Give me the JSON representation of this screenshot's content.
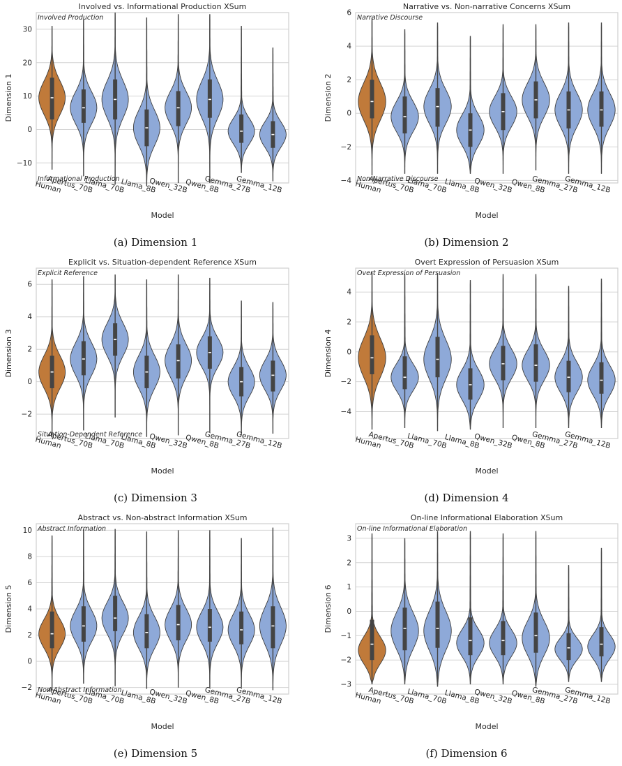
{
  "chart_data": [
    {
      "type": "violin",
      "title": "Involved vs. Informational Production XSum",
      "xlabel": "Model",
      "ylabel": "Dimension 1",
      "ylim": [
        -16,
        35
      ],
      "yticks": [
        -10,
        0,
        10,
        20,
        30
      ],
      "categories": [
        "Human",
        "Apertus_70B",
        "Llama_70B",
        "Llama_8B",
        "Qwen_32B",
        "Qwen_8B",
        "Gemma_27B",
        "Gemma_12B"
      ],
      "annotation_top": "Involved Production",
      "annotation_bottom": "Informational Production",
      "caption": "(a) Dimension 1",
      "stats": [
        {
          "min": -12,
          "q1": 3,
          "median": 9.5,
          "q3": 15.5,
          "max": 31,
          "mode": 9.5,
          "spread": 5
        },
        {
          "min": -14,
          "q1": 2,
          "median": 6.5,
          "q3": 12,
          "max": 33,
          "mode": 6.5,
          "spread": 4.8
        },
        {
          "min": -16.5,
          "q1": 3,
          "median": 9,
          "q3": 15,
          "max": 35,
          "mode": 9,
          "spread": 5.5
        },
        {
          "min": -17,
          "q1": -5,
          "median": 0.5,
          "q3": 6,
          "max": 33.5,
          "mode": 0.5,
          "spread": 5.2
        },
        {
          "min": -16,
          "q1": 1,
          "median": 6.5,
          "q3": 11.5,
          "max": 34.5,
          "mode": 6.5,
          "spread": 4.8
        },
        {
          "min": -16,
          "q1": 3.5,
          "median": 9,
          "q3": 15,
          "max": 34.5,
          "mode": 9,
          "spread": 5.5
        },
        {
          "min": -13,
          "q1": -4,
          "median": -0.5,
          "q3": 4.5,
          "max": 31,
          "mode": -0.5,
          "spread": 3.8
        },
        {
          "min": -15.5,
          "q1": -5.5,
          "median": -1.5,
          "q3": 2.5,
          "max": 24.5,
          "mode": -1.5,
          "spread": 3.8
        }
      ]
    },
    {
      "type": "violin",
      "title": "Narrative vs. Non-narrative Concerns XSum",
      "xlabel": "Model",
      "ylabel": "Dimension 2",
      "ylim": [
        -4.15,
        6
      ],
      "yticks": [
        -4,
        -2,
        0,
        2,
        4,
        6
      ],
      "categories": [
        "Human",
        "Apertus_70B",
        "Llama_70B",
        "Llama_8B",
        "Qwen_32B",
        "Qwen_8B",
        "Gemma_27B",
        "Gemma_12B"
      ],
      "annotation_top": "Narrative Discourse",
      "annotation_bottom": "Non-Narrative Discourse",
      "caption": "(b) Dimension 2",
      "stats": [
        {
          "min": -3.7,
          "q1": -0.3,
          "median": 0.7,
          "q3": 2.0,
          "max": 5.7,
          "mode": 0.7,
          "spread": 1.1
        },
        {
          "min": -3.6,
          "q1": -1.2,
          "median": -0.2,
          "q3": 1.0,
          "max": 5.0,
          "mode": -0.2,
          "spread": 0.9
        },
        {
          "min": -3.6,
          "q1": -0.8,
          "median": 0.4,
          "q3": 1.5,
          "max": 5.4,
          "mode": 0.4,
          "spread": 1.0
        },
        {
          "min": -3.6,
          "q1": -2.0,
          "median": -1.0,
          "q3": 0.0,
          "max": 4.6,
          "mode": -1.0,
          "spread": 0.9
        },
        {
          "min": -3.6,
          "q1": -1.0,
          "median": 0.1,
          "q3": 1.2,
          "max": 5.3,
          "mode": 0.1,
          "spread": 0.9
        },
        {
          "min": -3.4,
          "q1": -0.3,
          "median": 0.8,
          "q3": 1.9,
          "max": 5.3,
          "mode": 0.8,
          "spread": 1.0
        },
        {
          "min": -3.6,
          "q1": -0.9,
          "median": 0.2,
          "q3": 1.3,
          "max": 5.4,
          "mode": 0.2,
          "spread": 1.0
        },
        {
          "min": -3.6,
          "q1": -0.8,
          "median": 0.2,
          "q3": 1.3,
          "max": 5.4,
          "mode": 0.2,
          "spread": 1.0
        }
      ]
    },
    {
      "type": "violin",
      "title": "Explicit vs. Situation-dependent Reference XSum",
      "xlabel": "Model",
      "ylabel": "Dimension 3",
      "ylim": [
        -3.5,
        7
      ],
      "yticks": [
        -2,
        0,
        2,
        4,
        6
      ],
      "categories": [
        "Human",
        "Apertus_70B",
        "Llama_70B",
        "Llama_8B",
        "Qwen_32B",
        "Qwen_8B",
        "Gemma_27B",
        "Gemma_12B"
      ],
      "annotation_top": "Explicit Reference",
      "annotation_bottom": "Situation-Dependent Reference",
      "caption": "(c) Dimension 3",
      "stats": [
        {
          "min": -3.3,
          "q1": -0.4,
          "median": 0.6,
          "q3": 1.6,
          "max": 6.3,
          "mode": 0.6,
          "spread": 1.0
        },
        {
          "min": -3.0,
          "q1": 0.4,
          "median": 1.4,
          "q3": 2.5,
          "max": 6.5,
          "mode": 1.4,
          "spread": 1.0
        },
        {
          "min": -2.2,
          "q1": 1.6,
          "median": 2.6,
          "q3": 3.6,
          "max": 6.6,
          "mode": 2.6,
          "spread": 1.0
        },
        {
          "min": -3.4,
          "q1": -0.4,
          "median": 0.6,
          "q3": 1.6,
          "max": 6.3,
          "mode": 0.6,
          "spread": 1.0
        },
        {
          "min": -3.3,
          "q1": 0.2,
          "median": 1.3,
          "q3": 2.3,
          "max": 6.6,
          "mode": 1.3,
          "spread": 1.0
        },
        {
          "min": -3.1,
          "q1": 0.8,
          "median": 1.8,
          "q3": 2.8,
          "max": 6.4,
          "mode": 1.8,
          "spread": 0.9
        },
        {
          "min": -3.3,
          "q1": -0.9,
          "median": 0.0,
          "q3": 0.9,
          "max": 5.0,
          "mode": 0.0,
          "spread": 0.9
        },
        {
          "min": -3.2,
          "q1": -0.6,
          "median": 0.4,
          "q3": 1.3,
          "max": 4.9,
          "mode": 0.4,
          "spread": 0.9
        }
      ]
    },
    {
      "type": "violin",
      "title": "Overt Expression of Persuasion XSum",
      "xlabel": "Model",
      "ylabel": "Dimension 4",
      "ylim": [
        -5.8,
        5.6
      ],
      "yticks": [
        -4,
        -2,
        0,
        2,
        4
      ],
      "categories": [
        "Human",
        "Apertus_70B",
        "Llama_70B",
        "Llama_8B",
        "Qwen_32B",
        "Qwen_8B",
        "Gemma_27B",
        "Gemma_12B"
      ],
      "annotation_top": "Overt Expression of Persuasion",
      "annotation_bottom": "",
      "caption": "(d) Dimension 4",
      "stats": [
        {
          "min": -5.2,
          "q1": -1.5,
          "median": -0.4,
          "q3": 1.1,
          "max": 5.3,
          "mode": -0.4,
          "spread": 1.3
        },
        {
          "min": -5.1,
          "q1": -2.5,
          "median": -1.7,
          "q3": -0.3,
          "max": 5.2,
          "mode": -1.7,
          "spread": 0.9
        },
        {
          "min": -5.3,
          "q1": -1.7,
          "median": -0.5,
          "q3": 1.0,
          "max": 5.2,
          "mode": -0.5,
          "spread": 1.3
        },
        {
          "min": -5.2,
          "q1": -3.2,
          "median": -2.2,
          "q3": -1.1,
          "max": 4.8,
          "mode": -2.2,
          "spread": 1.0
        },
        {
          "min": -5.1,
          "q1": -1.9,
          "median": -0.8,
          "q3": 0.4,
          "max": 5.2,
          "mode": -0.8,
          "spread": 1.0
        },
        {
          "min": -5.1,
          "q1": -2.0,
          "median": -0.9,
          "q3": 0.5,
          "max": 5.2,
          "mode": -0.9,
          "spread": 1.0
        },
        {
          "min": -5.1,
          "q1": -2.7,
          "median": -1.7,
          "q3": -0.6,
          "max": 4.4,
          "mode": -1.7,
          "spread": 1.0
        },
        {
          "min": -5.1,
          "q1": -2.8,
          "median": -1.9,
          "q3": -0.7,
          "max": 4.9,
          "mode": -1.9,
          "spread": 1.0
        }
      ]
    },
    {
      "type": "violin",
      "title": "Abstract vs. Non-abstract Information XSum",
      "xlabel": "Model",
      "ylabel": "Dimension 5",
      "ylim": [
        -2.5,
        10.5
      ],
      "yticks": [
        -2,
        0,
        2,
        4,
        6,
        8,
        10
      ],
      "categories": [
        "Human",
        "Apertus_70B",
        "Llama_70B",
        "Llama_8B",
        "Qwen_32B",
        "Qwen_8B",
        "Gemma_27B",
        "Gemma_12B"
      ],
      "annotation_top": "Abstract Information",
      "annotation_bottom": "Non-Abstract Information",
      "caption": "(e) Dimension 5",
      "stats": [
        {
          "min": -2.2,
          "q1": 1.0,
          "median": 2.1,
          "q3": 3.8,
          "max": 9.6,
          "mode": 2.1,
          "spread": 1.1
        },
        {
          "min": -1.7,
          "q1": 1.5,
          "median": 2.7,
          "q3": 4.2,
          "max": 10.1,
          "mode": 2.7,
          "spread": 1.2
        },
        {
          "min": -1.9,
          "q1": 2.3,
          "median": 3.3,
          "q3": 5.0,
          "max": 10.1,
          "mode": 3.3,
          "spread": 1.2
        },
        {
          "min": -2.1,
          "q1": 1.0,
          "median": 2.2,
          "q3": 3.6,
          "max": 9.9,
          "mode": 2.2,
          "spread": 1.2
        },
        {
          "min": -2.0,
          "q1": 1.6,
          "median": 2.8,
          "q3": 4.3,
          "max": 10.0,
          "mode": 2.8,
          "spread": 1.2
        },
        {
          "min": -2.0,
          "q1": 1.5,
          "median": 2.6,
          "q3": 4.0,
          "max": 10.0,
          "mode": 2.6,
          "spread": 1.2
        },
        {
          "min": -2.0,
          "q1": 1.3,
          "median": 2.4,
          "q3": 3.8,
          "max": 9.4,
          "mode": 2.4,
          "spread": 1.2
        },
        {
          "min": -2.2,
          "q1": 1.0,
          "median": 2.7,
          "q3": 4.2,
          "max": 10.2,
          "mode": 2.7,
          "spread": 1.4
        }
      ]
    },
    {
      "type": "violin",
      "title": "On-line Informational Elaboration XSum",
      "xlabel": "Model",
      "ylabel": "Dimension 6",
      "ylim": [
        -3.4,
        3.6
      ],
      "yticks": [
        -3,
        -2,
        -1,
        0,
        1,
        2,
        3
      ],
      "categories": [
        "Human",
        "Apertus_70B",
        "Llama_70B",
        "Llama_8B",
        "Qwen_32B",
        "Qwen_8B",
        "Gemma_27B",
        "Gemma_12B"
      ],
      "annotation_top": "On-line Informational Elaboration",
      "annotation_bottom": "",
      "caption": "(f) Dimension 6",
      "stats": [
        {
          "min": -3.0,
          "q1": -2.0,
          "median": -1.35,
          "q3": -0.35,
          "max": 3.2,
          "mode": -1.6,
          "spread": 0.55
        },
        {
          "min": -3.0,
          "q1": -1.6,
          "median": -0.7,
          "q3": 0.15,
          "max": 3.0,
          "mode": -0.8,
          "spread": 0.75
        },
        {
          "min": -3.1,
          "q1": -1.5,
          "median": -0.7,
          "q3": 0.4,
          "max": 3.3,
          "mode": -0.8,
          "spread": 0.8
        },
        {
          "min": -3.0,
          "q1": -1.8,
          "median": -1.2,
          "q3": -0.25,
          "max": 3.3,
          "mode": -1.3,
          "spread": 0.55
        },
        {
          "min": -3.0,
          "q1": -1.8,
          "median": -1.2,
          "q3": -0.4,
          "max": 3.2,
          "mode": -1.3,
          "spread": 0.55
        },
        {
          "min": -3.1,
          "q1": -1.7,
          "median": -1.0,
          "q3": -0.05,
          "max": 3.3,
          "mode": -1.1,
          "spread": 0.7
        },
        {
          "min": -2.9,
          "q1": -2.0,
          "median": -1.5,
          "q3": -0.9,
          "max": 1.9,
          "mode": -1.55,
          "spread": 0.45
        },
        {
          "min": -2.9,
          "q1": -1.85,
          "median": -1.35,
          "q3": -0.65,
          "max": 2.6,
          "mode": -1.45,
          "spread": 0.5
        }
      ]
    }
  ],
  "colors": {
    "human": "#c07a3a",
    "model": "#8ea9d8",
    "edge": "#3d3d3d",
    "box": "#444444",
    "grid": "#d4d4d4",
    "frame": "#cfcfcf",
    "text": "#262626"
  }
}
